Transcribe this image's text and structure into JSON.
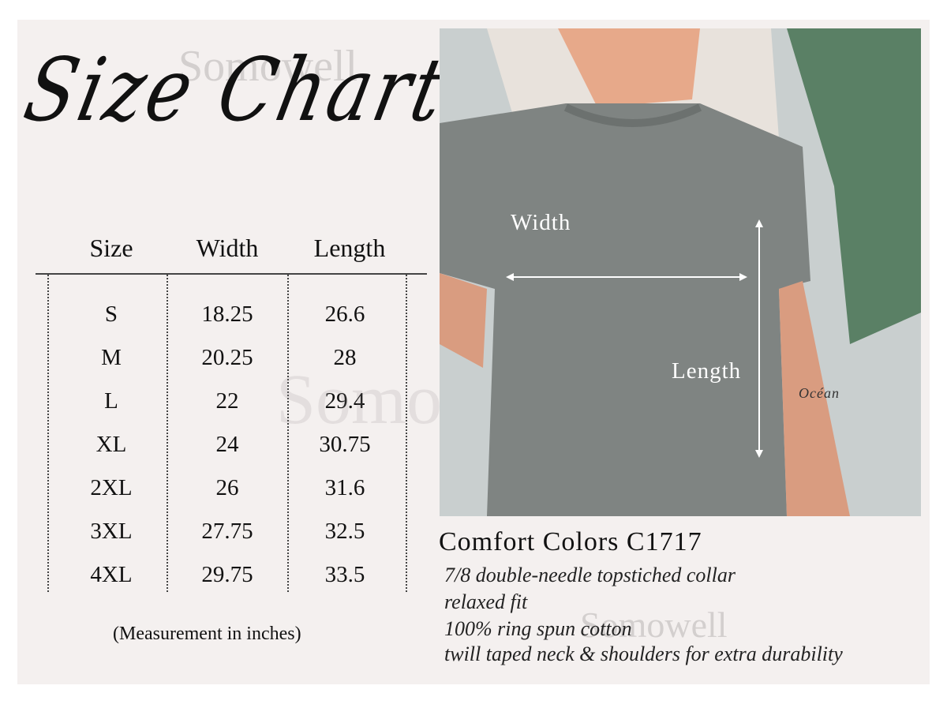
{
  "title": "Size Chart",
  "watermark": "Somowell",
  "table": {
    "headers": [
      "Size",
      "Width",
      "Length"
    ],
    "rows": [
      [
        "S",
        "18.25",
        "26.6"
      ],
      [
        "M",
        "20.25",
        "28"
      ],
      [
        "L",
        "22",
        "29.4"
      ],
      [
        "XL",
        "24",
        "30.75"
      ],
      [
        "2XL",
        "26",
        "31.6"
      ],
      [
        "3XL",
        "27.75",
        "32.5"
      ],
      [
        "4XL",
        "29.75",
        "33.5"
      ]
    ],
    "note": "(Measurement in inches)"
  },
  "photo": {
    "width_label": "Width",
    "length_label": "Length",
    "tattoo": "Océan"
  },
  "product": {
    "name": "Comfort Colors C1717",
    "features": [
      "7/8 double-needle topstiched collar",
      "relaxed fit",
      "100% ring spun cotton",
      "twill taped neck & shoulders for extra durability"
    ]
  }
}
